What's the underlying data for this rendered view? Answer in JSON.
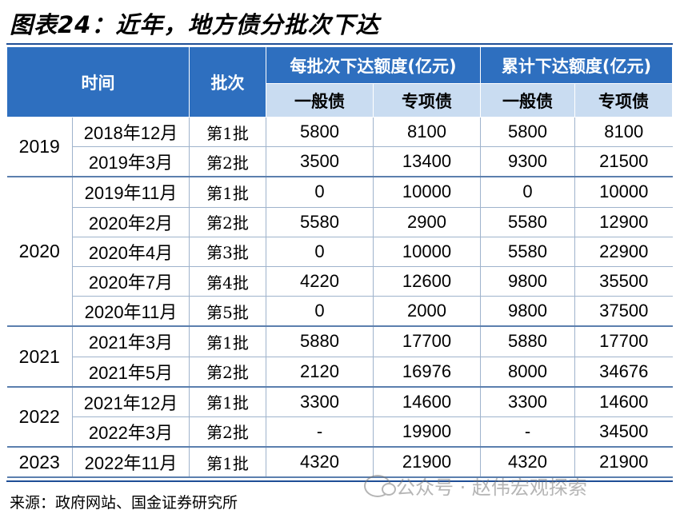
{
  "title": "图表24：近年，地方债分批次下达",
  "header": {
    "time": "时间",
    "batch": "批次",
    "per_batch": "每批次下达额度(亿元)",
    "cumulative": "累计下达额度(亿元)",
    "general": "一般债",
    "special": "专项债"
  },
  "groups": [
    {
      "year": "2019",
      "rows": [
        {
          "date": "2018年12月",
          "batch": "第1批",
          "g": "5800",
          "s": "8100",
          "cg": "5800",
          "cs": "8100"
        },
        {
          "date": "2019年3月",
          "batch": "第2批",
          "g": "3500",
          "s": "13400",
          "cg": "9300",
          "cs": "21500"
        }
      ]
    },
    {
      "year": "2020",
      "rows": [
        {
          "date": "2019年11月",
          "batch": "第1批",
          "g": "0",
          "s": "10000",
          "cg": "0",
          "cs": "10000"
        },
        {
          "date": "2020年2月",
          "batch": "第2批",
          "g": "5580",
          "s": "2900",
          "cg": "5580",
          "cs": "12900"
        },
        {
          "date": "2020年4月",
          "batch": "第3批",
          "g": "0",
          "s": "10000",
          "cg": "5580",
          "cs": "22900"
        },
        {
          "date": "2020年7月",
          "batch": "第4批",
          "g": "4220",
          "s": "12600",
          "cg": "9800",
          "cs": "35500"
        },
        {
          "date": "2020年11月",
          "batch": "第5批",
          "g": "0",
          "s": "2000",
          "cg": "9800",
          "cs": "37500"
        }
      ]
    },
    {
      "year": "2021",
      "rows": [
        {
          "date": "2021年3月",
          "batch": "第1批",
          "g": "5880",
          "s": "17700",
          "cg": "5880",
          "cs": "17700"
        },
        {
          "date": "2021年5月",
          "batch": "第2批",
          "g": "2120",
          "s": "16976",
          "cg": "8000",
          "cs": "34676"
        }
      ]
    },
    {
      "year": "2022",
      "rows": [
        {
          "date": "2021年12月",
          "batch": "第1批",
          "g": "3300",
          "s": "14600",
          "cg": "3300",
          "cs": "14600"
        },
        {
          "date": "2022年3月",
          "batch": "第2批",
          "g": "-",
          "s": "19900",
          "cg": "-",
          "cs": "34500"
        }
      ]
    },
    {
      "year": "2023",
      "rows": [
        {
          "date": "2022年11月",
          "batch": "第1批",
          "g": "4320",
          "s": "21900",
          "cg": "4320",
          "cs": "21900"
        }
      ]
    }
  ],
  "source": "来源：政府网站、国金证券研究所",
  "watermark": "公众号 · 赵伟宏观探索"
}
